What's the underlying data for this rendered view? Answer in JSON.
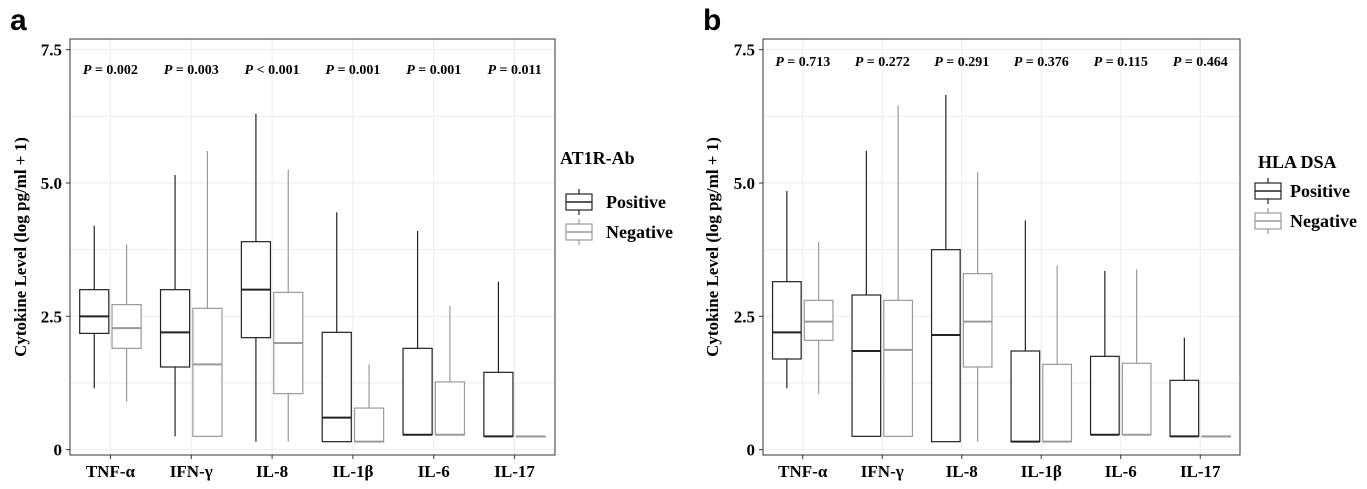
{
  "chart_data": [
    {
      "type": "box",
      "panel_label": "a",
      "ylabel": "Cytokine Level (log pg/ml + 1)",
      "ylim": [
        -0.1,
        7.7
      ],
      "yticks": [
        0,
        2.5,
        5.0,
        7.5
      ],
      "ytick_labels": [
        "0",
        "2.5",
        "5.0",
        "7.5"
      ],
      "grid": true,
      "categories": [
        "TNF-α",
        "IFN-γ",
        "IL-8",
        "IL-1β",
        "IL-6",
        "IL-17"
      ],
      "p_values": [
        {
          "label": "P",
          "text": " = 0.002"
        },
        {
          "label": "P",
          "text": " = 0.003"
        },
        {
          "label": "P",
          "text": " < 0.001"
        },
        {
          "label": "P",
          "text": " = 0.001"
        },
        {
          "label": "P",
          "text": " = 0.001"
        },
        {
          "label": "P",
          "text": " = 0.011"
        }
      ],
      "legend": {
        "title": "AT1R-Ab",
        "placement": "right",
        "items": [
          "Positive",
          "Negative"
        ]
      },
      "series": [
        {
          "name": "Positive",
          "color": "#222222",
          "boxes": [
            {
              "min": 1.15,
              "q1": 2.18,
              "median": 2.5,
              "q3": 3.0,
              "max": 4.2
            },
            {
              "min": 0.25,
              "q1": 1.55,
              "median": 2.2,
              "q3": 3.0,
              "max": 5.15
            },
            {
              "min": 0.15,
              "q1": 2.1,
              "median": 3.0,
              "q3": 3.9,
              "max": 6.3
            },
            {
              "min": 0.15,
              "q1": 0.15,
              "median": 0.6,
              "q3": 2.2,
              "max": 4.45
            },
            {
              "min": 0.28,
              "q1": 0.28,
              "median": 0.28,
              "q3": 1.9,
              "max": 4.1
            },
            {
              "min": 0.25,
              "q1": 0.25,
              "median": 0.25,
              "q3": 1.45,
              "max": 3.15
            }
          ]
        },
        {
          "name": "Negative",
          "color": "#9a9a9a",
          "boxes": [
            {
              "min": 0.9,
              "q1": 1.9,
              "median": 2.28,
              "q3": 2.72,
              "max": 3.85
            },
            {
              "min": 0.25,
              "q1": 0.25,
              "median": 1.6,
              "q3": 2.65,
              "max": 5.6
            },
            {
              "min": 0.15,
              "q1": 1.05,
              "median": 2.0,
              "q3": 2.95,
              "max": 5.25
            },
            {
              "min": 0.15,
              "q1": 0.15,
              "median": 0.15,
              "q3": 0.78,
              "max": 1.6
            },
            {
              "min": 0.28,
              "q1": 0.28,
              "median": 0.28,
              "q3": 1.27,
              "max": 2.7
            },
            {
              "min": 0.25,
              "q1": 0.25,
              "median": 0.25,
              "q3": 0.25,
              "max": 0.25
            }
          ]
        }
      ]
    },
    {
      "type": "box",
      "panel_label": "b",
      "ylabel": "Cytokine Level (log pg/ml + 1)",
      "ylim": [
        -0.1,
        7.7
      ],
      "yticks": [
        0,
        2.5,
        5.0,
        7.5
      ],
      "ytick_labels": [
        "0",
        "2.5",
        "5.0",
        "7.5"
      ],
      "grid": true,
      "categories": [
        "TNF-α",
        "IFN-γ",
        "IL-8",
        "IL-1β",
        "IL-6",
        "IL-17"
      ],
      "p_values": [
        {
          "label": "P",
          "text": " = 0.713"
        },
        {
          "label": "P",
          "text": " = 0.272"
        },
        {
          "label": "P",
          "text": " = 0.291"
        },
        {
          "label": "P",
          "text": " = 0.376"
        },
        {
          "label": "P",
          "text": " = 0.115"
        },
        {
          "label": "P",
          "text": " = 0.464"
        }
      ],
      "legend": {
        "title": "HLA DSA",
        "placement": "right",
        "items": [
          "Positive",
          "Negative"
        ]
      },
      "series": [
        {
          "name": "Positive",
          "color": "#222222",
          "boxes": [
            {
              "min": 1.15,
              "q1": 1.7,
              "median": 2.2,
              "q3": 3.15,
              "max": 4.85
            },
            {
              "min": 0.25,
              "q1": 0.25,
              "median": 1.85,
              "q3": 2.9,
              "max": 5.6
            },
            {
              "min": 0.15,
              "q1": 0.15,
              "median": 2.15,
              "q3": 3.75,
              "max": 6.65
            },
            {
              "min": 0.15,
              "q1": 0.15,
              "median": 0.15,
              "q3": 1.85,
              "max": 4.3
            },
            {
              "min": 0.28,
              "q1": 0.28,
              "median": 0.28,
              "q3": 1.75,
              "max": 3.35
            },
            {
              "min": 0.25,
              "q1": 0.25,
              "median": 0.25,
              "q3": 1.3,
              "max": 2.1
            }
          ]
        },
        {
          "name": "Negative",
          "color": "#9a9a9a",
          "boxes": [
            {
              "min": 1.05,
              "q1": 2.05,
              "median": 2.4,
              "q3": 2.8,
              "max": 3.9
            },
            {
              "min": 0.25,
              "q1": 0.25,
              "median": 1.87,
              "q3": 2.8,
              "max": 6.45
            },
            {
              "min": 0.15,
              "q1": 1.55,
              "median": 2.4,
              "q3": 3.3,
              "max": 5.2
            },
            {
              "min": 0.15,
              "q1": 0.15,
              "median": 0.15,
              "q3": 1.6,
              "max": 3.45
            },
            {
              "min": 0.28,
              "q1": 0.28,
              "median": 0.28,
              "q3": 1.62,
              "max": 3.38
            },
            {
              "min": 0.25,
              "q1": 0.25,
              "median": 0.25,
              "q3": 0.25,
              "max": 0.25
            }
          ]
        }
      ]
    }
  ]
}
